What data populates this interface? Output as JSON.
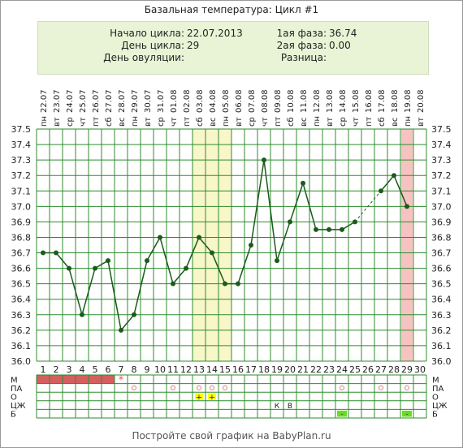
{
  "title": "Базальная температура: Цикл #1",
  "info": {
    "start_label": "Начало цикла:",
    "start_value": "22.07.2013",
    "day_label": "День цикла:",
    "day_value": "29",
    "ovul_label": "День овуляции:",
    "ovul_value": "",
    "phase1_label": "1ая фаза:",
    "phase1_value": "36.74",
    "phase2_label": "2ая фаза:",
    "phase2_value": "0.00",
    "diff_label": "Разница:",
    "diff_value": ""
  },
  "footer": "Постройте свой график на BabyPlan.ru",
  "colors": {
    "line": "#1a5c1a",
    "grid": "#2e8b2e",
    "highlight_yellow": "#f8f7c9",
    "highlight_pink": "#f7c2c2",
    "menstruation": "#d45f5f",
    "ovul_marker": "#ffff00",
    "green_marker": "#66dd22",
    "circle_marker": "#e07a7a"
  },
  "chart_data": {
    "type": "line",
    "x": [
      1,
      2,
      3,
      4,
      5,
      6,
      7,
      8,
      9,
      10,
      11,
      12,
      13,
      14,
      15,
      16,
      17,
      18,
      19,
      20,
      21,
      22,
      23,
      24,
      25,
      26,
      27,
      28,
      29,
      30
    ],
    "dates": [
      "22.07",
      "23.07",
      "24.07",
      "25.07",
      "26.07",
      "27.07",
      "28.07",
      "29.07",
      "30.07",
      "31.07",
      "01.08",
      "02.08",
      "03.08",
      "04.08",
      "05.08",
      "06.08",
      "07.08",
      "08.08",
      "09.08",
      "10.08",
      "11.08",
      "12.08",
      "13.08",
      "14.08",
      "15.08",
      "16.08",
      "17.08",
      "18.08",
      "19.08",
      "20.08"
    ],
    "weekdays": [
      "пн",
      "вт",
      "ср",
      "чт",
      "пт",
      "сб",
      "вс",
      "пн",
      "вт",
      "ср",
      "чт",
      "пт",
      "сб",
      "вс",
      "пн",
      "вт",
      "ср",
      "чт",
      "пт",
      "сб",
      "вс",
      "пн",
      "вт",
      "ср",
      "чт",
      "пт",
      "сб",
      "вс",
      "пн",
      "вт"
    ],
    "values": [
      36.7,
      36.7,
      36.6,
      36.3,
      36.6,
      36.65,
      36.2,
      36.3,
      36.65,
      36.8,
      36.5,
      36.6,
      36.8,
      36.7,
      36.5,
      36.5,
      36.75,
      37.3,
      36.65,
      36.9,
      37.15,
      36.85,
      36.85,
      36.85,
      36.9,
      null,
      37.1,
      37.2,
      37.0,
      null
    ],
    "dashed_gaps": [
      [
        25,
        27
      ]
    ],
    "ylim": [
      36.0,
      37.5
    ],
    "yticks": [
      "36.0",
      "36.1",
      "36.2",
      "36.3",
      "36.4",
      "36.5",
      "36.6",
      "36.7",
      "36.8",
      "36.9",
      "37.0",
      "37.1",
      "37.2",
      "37.3",
      "37.4",
      "37.5"
    ],
    "highlight_yellow_days": [
      13,
      15
    ],
    "highlight_pink_days": [
      29,
      29
    ],
    "grid": true
  },
  "table": {
    "rows": [
      "М",
      "ПА",
      "О",
      "ЦЖ",
      "Б"
    ],
    "menstruation_days": [
      1,
      6
    ],
    "menstruation_star_day": 7,
    "pa_days": [
      8,
      11,
      13,
      14,
      15,
      24,
      27,
      29
    ],
    "o_plus_days": [
      13,
      14
    ],
    "o_plus_symbol": "+",
    "czh": [
      {
        "day": 19,
        "label": "К"
      },
      {
        "day": 20,
        "label": "В"
      }
    ],
    "b_minus_days": [
      24,
      29
    ],
    "b_symbol": "-",
    "star_symbol": "*",
    "circle_symbol": "○"
  }
}
